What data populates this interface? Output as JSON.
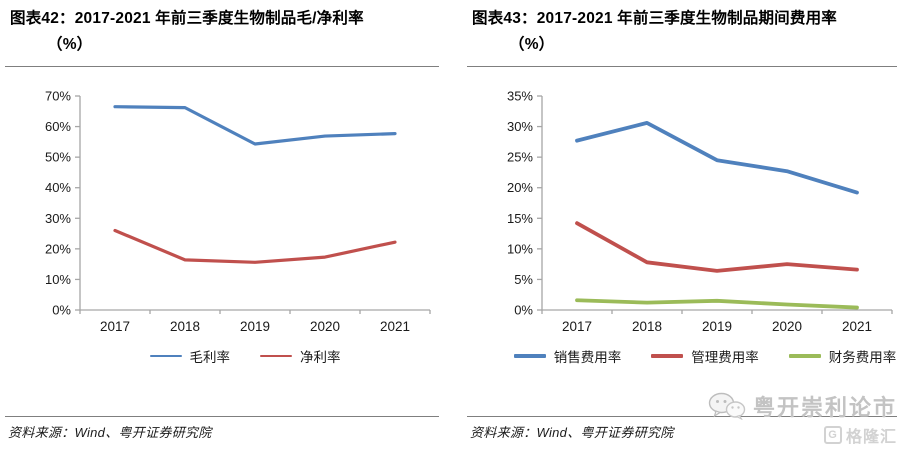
{
  "panels": [
    {
      "title_line1": "图表42：2017-2021 年前三季度生物制品毛/净利率",
      "title_line2": "（%）",
      "source": "资料来源：Wind、粤开证券研究院"
    },
    {
      "title_line1": "图表43：2017-2021 年前三季度生物制品期间费用率",
      "title_line2": "（%）",
      "source": "资料来源：Wind、粤开证券研究院"
    }
  ],
  "chart_data": [
    {
      "type": "line",
      "title": "图表42：2017-2021 年前三季度生物制品毛/净利率（%）",
      "categories": [
        "2017",
        "2018",
        "2019",
        "2020",
        "2021"
      ],
      "series": [
        {
          "name": "毛利率",
          "color": "#4F81BD",
          "values": [
            66.5,
            66.2,
            54.3,
            56.9,
            57.7
          ]
        },
        {
          "name": "净利率",
          "color": "#C0504D",
          "values": [
            26.0,
            16.4,
            15.6,
            17.3,
            22.2
          ]
        }
      ],
      "xlabel": "",
      "ylabel": "",
      "ylim": [
        0,
        70
      ],
      "ytick_step": 10,
      "ytick_suffix": "%",
      "grid": false,
      "legend_position": "bottom",
      "line_width": 3.2,
      "legend_line_width": 1.8
    },
    {
      "type": "line",
      "title": "图表43：2017-2021 年前三季度生物制品期间费用率（%）",
      "categories": [
        "2017",
        "2018",
        "2019",
        "2020",
        "2021"
      ],
      "series": [
        {
          "name": "销售费用率",
          "color": "#4F81BD",
          "values": [
            27.7,
            30.6,
            24.5,
            22.7,
            19.2
          ]
        },
        {
          "name": "管理费用率",
          "color": "#C0504D",
          "values": [
            14.2,
            7.8,
            6.4,
            7.5,
            6.6
          ]
        },
        {
          "name": "财务费用率",
          "color": "#9BBB59",
          "values": [
            1.6,
            1.2,
            1.5,
            0.9,
            0.4
          ]
        }
      ],
      "xlabel": "",
      "ylabel": "",
      "ylim": [
        0,
        35
      ],
      "ytick_step": 5,
      "ytick_suffix": "%",
      "grid": false,
      "legend_position": "bottom",
      "line_width": 3.8,
      "legend_line_width": 4.5
    }
  ],
  "style": {
    "axis_color": "#a6a6a6",
    "tick_label_color": "#1a1a1a"
  },
  "watermark": {
    "wechat_label": "粤开崇利论市",
    "brand_icon": "G",
    "brand_label": "格隆汇"
  }
}
